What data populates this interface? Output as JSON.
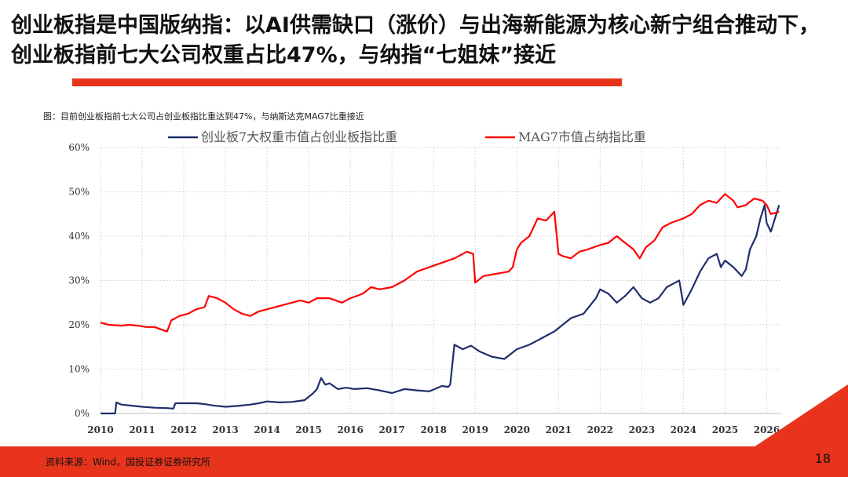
{
  "header": {
    "title": "创业板指是中国版纳指：以AI供需缺口（涨价）与出海新能源为核心新宁组合推动下，创业板指前七大公司权重占比47%，与纳指“七姐妹”接近"
  },
  "caption": "图：目前创业板指前七大公司占创业板指比重达到47%，与纳斯达克MAG7比重接近",
  "footer": {
    "source": "资料来源：Wind，国投证券证券研究所",
    "page_number": "18"
  },
  "colors": {
    "accent": "#e8341c",
    "series_blue": "#1f2d6b",
    "series_red": "#ff0000"
  },
  "chart_data": {
    "type": "line",
    "title": "",
    "xlabel": "",
    "ylabel": "",
    "xlim": [
      2010,
      2026.35
    ],
    "ylim": [
      0,
      60
    ],
    "x_ticks": [
      "2010",
      "2011",
      "2012",
      "2013",
      "2014",
      "2015",
      "2016",
      "2017",
      "2018",
      "2019",
      "2020",
      "2021",
      "2022",
      "2023",
      "2024",
      "2025",
      "2026"
    ],
    "y_ticks": [
      "0%",
      "10%",
      "20%",
      "30%",
      "40%",
      "50%",
      "60%"
    ],
    "grid": true,
    "legend_position": "top-center",
    "series": [
      {
        "name": "创业板7大权重市值占创业板指比重",
        "color": "#1f2d6b",
        "x": [
          2010.0,
          2010.35,
          2010.38,
          2010.5,
          2010.8,
          2011.0,
          2011.3,
          2011.6,
          2011.75,
          2011.8,
          2012.0,
          2012.3,
          2012.5,
          2012.7,
          2013.0,
          2013.3,
          2013.6,
          2013.8,
          2014.0,
          2014.3,
          2014.6,
          2014.9,
          2015.1,
          2015.2,
          2015.3,
          2015.4,
          2015.5,
          2015.7,
          2015.9,
          2016.1,
          2016.4,
          2016.7,
          2017.0,
          2017.3,
          2017.6,
          2017.9,
          2018.2,
          2018.35,
          2018.4,
          2018.5,
          2018.7,
          2018.9,
          2019.1,
          2019.4,
          2019.7,
          2020.0,
          2020.3,
          2020.5,
          2020.7,
          2020.9,
          2021.1,
          2021.3,
          2021.6,
          2021.9,
          2022.0,
          2022.2,
          2022.4,
          2022.6,
          2022.8,
          2023.0,
          2023.2,
          2023.4,
          2023.6,
          2023.8,
          2023.9,
          2024.0,
          2024.2,
          2024.4,
          2024.6,
          2024.8,
          2024.9,
          2025.0,
          2025.2,
          2025.4,
          2025.5,
          2025.6,
          2025.75,
          2025.85,
          2025.95,
          2026.0,
          2026.1,
          2026.2,
          2026.3
        ],
        "values": [
          0,
          0,
          2.5,
          2,
          1.7,
          1.5,
          1.3,
          1.2,
          1.1,
          2.3,
          2.3,
          2.3,
          2.1,
          1.8,
          1.5,
          1.7,
          2.0,
          2.3,
          2.7,
          2.5,
          2.6,
          3.0,
          4.5,
          5.5,
          8.0,
          6.5,
          6.8,
          5.5,
          5.8,
          5.5,
          5.7,
          5.2,
          4.6,
          5.5,
          5.2,
          5.0,
          6.2,
          6.0,
          6.5,
          15.5,
          14.5,
          15.3,
          14.0,
          12.8,
          12.3,
          14.5,
          15.5,
          16.5,
          17.5,
          18.5,
          20.0,
          21.5,
          22.5,
          26.0,
          28.0,
          27.0,
          25.0,
          26.5,
          28.5,
          26.0,
          25.0,
          26.0,
          28.5,
          29.5,
          30.0,
          24.5,
          28.0,
          32.0,
          35.0,
          36.0,
          33.0,
          34.5,
          33.0,
          31.0,
          32.5,
          37.0,
          40.0,
          44.0,
          47.0,
          43.0,
          41.0,
          44.0,
          47.0
        ]
      },
      {
        "name": "MAG7市值占纳指比重",
        "color": "#ff0000",
        "x": [
          2010.0,
          2010.2,
          2010.5,
          2010.7,
          2010.9,
          2011.1,
          2011.3,
          2011.5,
          2011.6,
          2011.7,
          2011.9,
          2012.1,
          2012.3,
          2012.5,
          2012.6,
          2012.8,
          2013.0,
          2013.2,
          2013.4,
          2013.6,
          2013.8,
          2014.0,
          2014.2,
          2014.4,
          2014.6,
          2014.8,
          2015.0,
          2015.2,
          2015.5,
          2015.8,
          2016.0,
          2016.3,
          2016.5,
          2016.7,
          2017.0,
          2017.3,
          2017.6,
          2017.9,
          2018.2,
          2018.5,
          2018.8,
          2018.95,
          2019.0,
          2019.2,
          2019.5,
          2019.8,
          2019.9,
          2020.0,
          2020.1,
          2020.3,
          2020.5,
          2020.7,
          2020.9,
          2021.0,
          2021.1,
          2021.3,
          2021.5,
          2021.7,
          2022.0,
          2022.2,
          2022.4,
          2022.6,
          2022.8,
          2022.95,
          2023.1,
          2023.3,
          2023.5,
          2023.7,
          2024.0,
          2024.2,
          2024.4,
          2024.6,
          2024.8,
          2025.0,
          2025.2,
          2025.3,
          2025.5,
          2025.7,
          2025.9,
          2026.0,
          2026.1,
          2026.3
        ],
        "values": [
          20.5,
          20.0,
          19.8,
          20.0,
          19.8,
          19.5,
          19.5,
          18.8,
          18.5,
          21.0,
          22.0,
          22.5,
          23.5,
          24.0,
          26.5,
          26.0,
          25.0,
          23.5,
          22.5,
          22.0,
          23.0,
          23.5,
          24.0,
          24.5,
          25.0,
          25.5,
          25.0,
          26.0,
          26.0,
          25.0,
          26.0,
          27.0,
          28.5,
          28.0,
          28.5,
          30.0,
          32.0,
          33.0,
          34.0,
          35.0,
          36.5,
          36.0,
          29.5,
          31.0,
          31.5,
          32.0,
          33.0,
          37.0,
          38.5,
          40.0,
          44.0,
          43.5,
          45.5,
          36.0,
          35.5,
          35.0,
          36.5,
          37.0,
          38.0,
          38.5,
          40.0,
          38.5,
          37.0,
          35.0,
          37.5,
          39.0,
          42.0,
          43.0,
          44.0,
          45.0,
          47.0,
          48.0,
          47.5,
          49.5,
          48.0,
          46.5,
          47.0,
          48.5,
          48.0,
          47.0,
          45.0,
          45.5
        ]
      }
    ]
  }
}
